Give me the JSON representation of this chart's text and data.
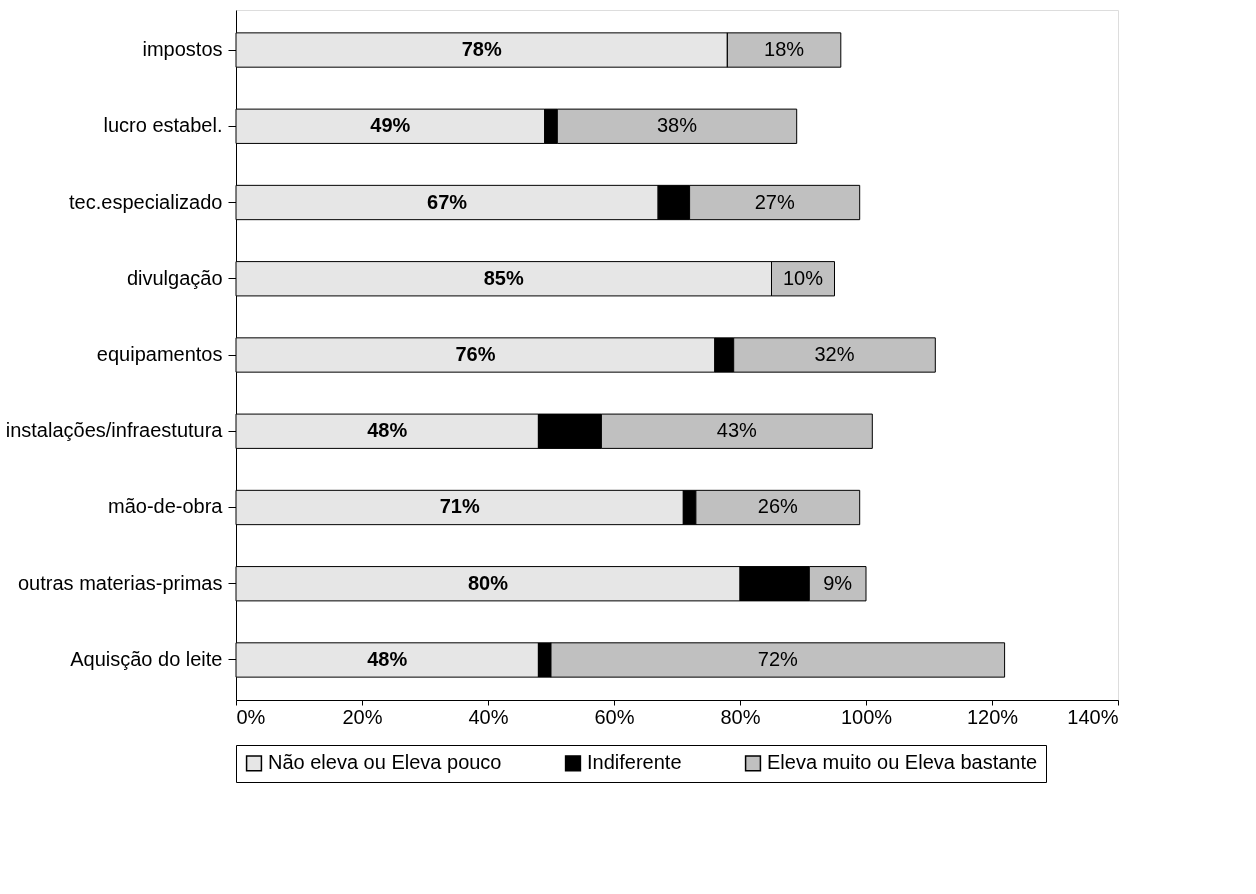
{
  "chart_data": {
    "type": "bar",
    "orientation": "horizontal",
    "stacked": true,
    "categories": [
      "impostos",
      "lucro estabel.",
      "tec.especializado",
      "divulgação",
      "equipamentos",
      "instalações/infraestutura",
      "mão-de-obra",
      "outras materias-primas",
      "Aquisção do leite"
    ],
    "series": [
      {
        "name": "Não eleva ou Eleva pouco",
        "color": "#e6e6e6",
        "values": [
          78,
          49,
          67,
          85,
          76,
          48,
          71,
          80,
          48
        ],
        "value_labels": [
          "78%",
          "49%",
          "67%",
          "85%",
          "76%",
          "48%",
          "71%",
          "80%",
          "48%"
        ]
      },
      {
        "name": "Indiferente",
        "color": "#000000",
        "values": [
          0,
          2,
          5,
          0,
          3,
          10,
          2,
          11,
          2
        ]
      },
      {
        "name": "Eleva muito ou Eleva bastante",
        "color": "#c0c0c0",
        "values": [
          18,
          38,
          27,
          10,
          32,
          43,
          26,
          9,
          72
        ],
        "value_labels": [
          "18%",
          "38%",
          "27%",
          "10%",
          "32%",
          "43%",
          "26%",
          "9%",
          "72%"
        ]
      }
    ],
    "xlim": [
      0,
      140
    ],
    "xticks": [
      {
        "value": 0,
        "label": "0%"
      },
      {
        "value": 20,
        "label": "20%"
      },
      {
        "value": 40,
        "label": "40%"
      },
      {
        "value": 60,
        "label": "60%"
      },
      {
        "value": 80,
        "label": "80%"
      },
      {
        "value": 100,
        "label": "100%"
      },
      {
        "value": 120,
        "label": "120%"
      },
      {
        "value": 140,
        "label": "140%"
      }
    ],
    "grid": false,
    "legend": "bottom"
  }
}
